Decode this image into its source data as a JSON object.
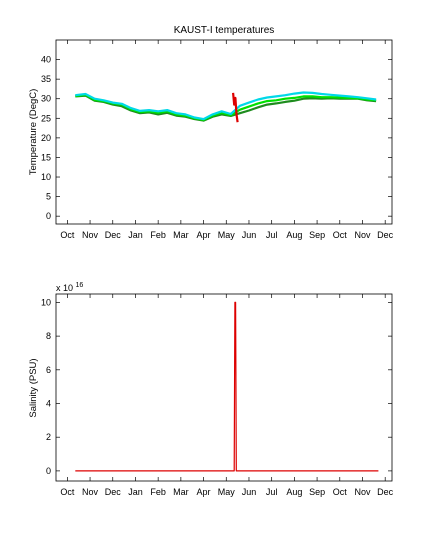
{
  "chart_data": [
    {
      "type": "line",
      "title": "KAUST-I temperatures",
      "xlabel": "",
      "ylabel": "Temperature (DegC)",
      "ylim": [
        -2,
        45
      ],
      "yticks": [
        0,
        5,
        10,
        15,
        20,
        25,
        30,
        35,
        40
      ],
      "xticks": [
        "Oct",
        "Nov",
        "Dec",
        "Jan",
        "Feb",
        "Mar",
        "Apr",
        "May",
        "Jun",
        "Jul",
        "Aug",
        "Sep",
        "Oct",
        "Nov",
        "Dec"
      ],
      "xlim_months": [
        -0.5,
        14.3
      ],
      "series": [
        {
          "color": "#1e8c1e",
          "x": [
            0.35,
            0.8,
            1.2,
            1.6,
            2.0,
            2.4,
            2.8,
            3.2,
            3.6,
            4.0,
            4.4,
            4.8,
            5.2,
            5.6,
            6.0,
            6.4,
            6.8,
            7.2,
            7.6,
            8.0,
            8.4,
            8.8,
            9.2,
            9.6,
            10.0,
            10.4,
            10.8,
            11.2,
            11.6,
            12.0,
            12.4,
            12.8,
            13.2,
            13.6
          ],
          "y": [
            30.6,
            30.8,
            29.5,
            29.2,
            28.5,
            28.1,
            27.0,
            26.3,
            26.5,
            26.0,
            26.4,
            25.7,
            25.4,
            24.8,
            24.4,
            25.4,
            26.0,
            25.6,
            26.3,
            27.0,
            27.8,
            28.5,
            28.8,
            29.2,
            29.5,
            30.0,
            30.1,
            30.0,
            30.1,
            30.0,
            30.0,
            30.0,
            29.6,
            29.4
          ]
        },
        {
          "color": "#00e000",
          "x": [
            0.35,
            0.8,
            1.2,
            1.6,
            2.0,
            2.4,
            2.8,
            3.2,
            3.6,
            4.0,
            4.4,
            4.8,
            5.2,
            5.6,
            6.0,
            6.4,
            6.8,
            7.2,
            7.6,
            8.0,
            8.4,
            8.8,
            9.2,
            9.6,
            10.0,
            10.4,
            10.8,
            11.2,
            11.6,
            12.0,
            12.4,
            12.8,
            13.2,
            13.6
          ],
          "y": [
            30.7,
            31.0,
            29.7,
            29.4,
            28.8,
            28.5,
            27.3,
            26.6,
            26.8,
            26.4,
            26.8,
            26.0,
            25.7,
            25.0,
            24.6,
            25.7,
            26.4,
            25.8,
            27.2,
            28.0,
            28.8,
            29.4,
            29.6,
            30.0,
            30.2,
            30.6,
            30.6,
            30.4,
            30.4,
            30.3,
            30.2,
            30.1,
            29.8,
            29.6
          ]
        },
        {
          "color": "#00d8e8",
          "x": [
            0.35,
            0.8,
            1.2,
            1.6,
            2.0,
            2.4,
            2.8,
            3.2,
            3.6,
            4.0,
            4.4,
            4.8,
            5.2,
            5.6,
            6.0,
            6.4,
            6.8,
            7.2,
            7.6,
            8.0,
            8.4,
            8.8,
            9.2,
            9.6,
            10.0,
            10.4,
            10.8,
            11.2,
            11.6,
            12.0,
            12.4,
            12.8,
            13.2,
            13.6
          ],
          "y": [
            30.9,
            31.2,
            30.0,
            29.6,
            29.0,
            28.7,
            27.6,
            26.9,
            27.1,
            26.8,
            27.1,
            26.3,
            26.0,
            25.2,
            24.8,
            26.0,
            26.8,
            26.1,
            28.2,
            29.0,
            29.8,
            30.3,
            30.6,
            30.9,
            31.3,
            31.6,
            31.5,
            31.2,
            31.0,
            30.8,
            30.6,
            30.4,
            30.1,
            29.8
          ]
        },
        {
          "color": "#dd0000",
          "x": [
            7.3,
            7.35,
            7.4,
            7.45,
            7.5
          ],
          "y": [
            31.5,
            28.5,
            30.2,
            26.0,
            24.0
          ]
        }
      ]
    },
    {
      "type": "line",
      "title": "",
      "xlabel": "",
      "ylabel": "Salinity (PSU)",
      "yscale_label": "x 10",
      "yscale_exp": "16",
      "ylim": [
        -0.6,
        10.5
      ],
      "yticks": [
        0,
        2,
        4,
        6,
        8,
        10
      ],
      "xticks": [
        "Oct",
        "Nov",
        "Dec",
        "Jan",
        "Feb",
        "Mar",
        "Apr",
        "May",
        "Jun",
        "Jul",
        "Aug",
        "Sep",
        "Oct",
        "Nov",
        "Dec"
      ],
      "xlim_months": [
        -0.5,
        14.3
      ],
      "series": [
        {
          "color": "#dd0000",
          "x": [
            0.35,
            7.35,
            7.38,
            7.41,
            7.44,
            13.7
          ],
          "y": [
            0,
            0,
            10,
            10,
            0,
            0
          ]
        }
      ]
    }
  ]
}
